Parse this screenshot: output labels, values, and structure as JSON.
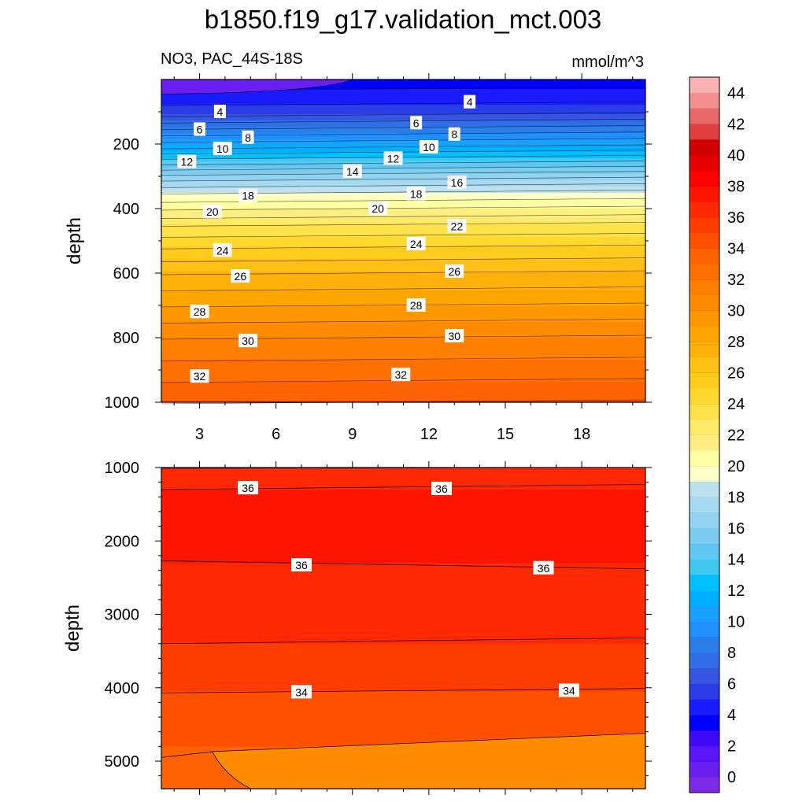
{
  "title": "b1850.f19_g17.validation_mct.003",
  "left_string": "NO3, PAC_44S-18S",
  "right_string": "mmol/m^3",
  "chart_data": [
    {
      "type": "contour",
      "panel": "upper",
      "ylabel": "depth",
      "xlabel": "",
      "xlim": [
        1.5,
        20.5
      ],
      "ylim": [
        1000,
        0
      ],
      "x_ticks": [
        3,
        6,
        9,
        12,
        15,
        18
      ],
      "y_ticks": [
        200,
        400,
        600,
        800,
        1000
      ],
      "contour_interval": 1,
      "depth_profile": [
        {
          "depth": 10,
          "value": 2.5
        },
        {
          "depth": 50,
          "value": 3.5
        },
        {
          "depth": 100,
          "value": 4.5
        },
        {
          "depth": 150,
          "value": 7
        },
        {
          "depth": 200,
          "value": 9.5
        },
        {
          "depth": 250,
          "value": 12.5
        },
        {
          "depth": 300,
          "value": 15.5
        },
        {
          "depth": 350,
          "value": 18
        },
        {
          "depth": 400,
          "value": 20
        },
        {
          "depth": 450,
          "value": 22
        },
        {
          "depth": 500,
          "value": 23.5
        },
        {
          "depth": 600,
          "value": 26
        },
        {
          "depth": 700,
          "value": 28
        },
        {
          "depth": 800,
          "value": 30
        },
        {
          "depth": 900,
          "value": 31.5
        },
        {
          "depth": 1000,
          "value": 33
        }
      ],
      "contour_labels": [
        {
          "x": 3.8,
          "depth": 100,
          "text": "4"
        },
        {
          "x": 13.6,
          "depth": 70,
          "text": "4"
        },
        {
          "x": 3.0,
          "depth": 155,
          "text": "6"
        },
        {
          "x": 11.5,
          "depth": 135,
          "text": "6"
        },
        {
          "x": 4.9,
          "depth": 180,
          "text": "8"
        },
        {
          "x": 13.0,
          "depth": 170,
          "text": "8"
        },
        {
          "x": 3.9,
          "depth": 215,
          "text": "10"
        },
        {
          "x": 12.0,
          "depth": 210,
          "text": "10"
        },
        {
          "x": 2.5,
          "depth": 255,
          "text": "12"
        },
        {
          "x": 10.6,
          "depth": 245,
          "text": "12"
        },
        {
          "x": 9.0,
          "depth": 285,
          "text": "14"
        },
        {
          "x": 13.1,
          "depth": 320,
          "text": "16"
        },
        {
          "x": 4.9,
          "depth": 360,
          "text": "18"
        },
        {
          "x": 11.5,
          "depth": 355,
          "text": "18"
        },
        {
          "x": 3.5,
          "depth": 410,
          "text": "20"
        },
        {
          "x": 10.0,
          "depth": 400,
          "text": "20"
        },
        {
          "x": 13.1,
          "depth": 455,
          "text": "22"
        },
        {
          "x": 3.9,
          "depth": 530,
          "text": "24"
        },
        {
          "x": 11.5,
          "depth": 510,
          "text": "24"
        },
        {
          "x": 4.6,
          "depth": 610,
          "text": "26"
        },
        {
          "x": 13.0,
          "depth": 595,
          "text": "26"
        },
        {
          "x": 3.0,
          "depth": 720,
          "text": "28"
        },
        {
          "x": 11.5,
          "depth": 700,
          "text": "28"
        },
        {
          "x": 4.9,
          "depth": 810,
          "text": "30"
        },
        {
          "x": 13.0,
          "depth": 795,
          "text": "30"
        },
        {
          "x": 3.0,
          "depth": 920,
          "text": "32"
        },
        {
          "x": 10.9,
          "depth": 915,
          "text": "32"
        }
      ]
    },
    {
      "type": "contour",
      "panel": "lower",
      "ylabel": "depth",
      "xlabel": "",
      "xlim": [
        1.5,
        20.5
      ],
      "ylim": [
        5375,
        1000
      ],
      "y_ticks": [
        1000,
        2000,
        3000,
        4000,
        5000
      ],
      "regions": [
        {
          "value_range": [
            35,
            36
          ],
          "depth_top": 1000,
          "depth_bottom": 1300
        },
        {
          "value_range": [
            36,
            37
          ],
          "depth_top": 1300,
          "depth_bottom": 2300
        },
        {
          "value_range": [
            35,
            36
          ],
          "depth_top": 2300,
          "depth_bottom": 3400
        },
        {
          "value_range": [
            34,
            35
          ],
          "depth_top": 3400,
          "depth_bottom": 4050
        },
        {
          "value_range": [
            33,
            34
          ],
          "depth_top": 4050,
          "depth_bottom": 4800
        },
        {
          "value_range": [
            32,
            33
          ],
          "depth_top": 4800,
          "depth_bottom": 5375
        }
      ],
      "contour_labels": [
        {
          "x": 4.9,
          "depth": 1280,
          "text": "36"
        },
        {
          "x": 12.5,
          "depth": 1290,
          "text": "36"
        },
        {
          "x": 7.0,
          "depth": 2330,
          "text": "36"
        },
        {
          "x": 16.5,
          "depth": 2370,
          "text": "36"
        },
        {
          "x": 7.0,
          "depth": 4060,
          "text": "34"
        },
        {
          "x": 17.5,
          "depth": 4040,
          "text": "34"
        }
      ]
    }
  ],
  "colorbar": {
    "labels": [
      "0",
      "2",
      "4",
      "6",
      "8",
      "10",
      "12",
      "14",
      "16",
      "18",
      "20",
      "22",
      "24",
      "26",
      "28",
      "30",
      "32",
      "34",
      "36",
      "38",
      "40",
      "42",
      "44"
    ],
    "colors": [
      "#7e2be6",
      "#6a1ef0",
      "#5a14f5",
      "#3d0afa",
      "#0000ff",
      "#1a1aff",
      "#2a3be8",
      "#3655e0",
      "#2f6ee8",
      "#2b7de8",
      "#1e90ff",
      "#1aa0ff",
      "#00b0ff",
      "#00c0ff",
      "#40c8f2",
      "#5ec8f2",
      "#7ccdf0",
      "#93d3ef",
      "#a6daef",
      "#bde2ef",
      "#ffffc8",
      "#ffffa6",
      "#ffef80",
      "#ffea6a",
      "#ffe14a",
      "#ffd82e",
      "#ffcc1e",
      "#ffc016",
      "#ffb00a",
      "#ffa500",
      "#ff9800",
      "#ff8c00",
      "#ff8000",
      "#ff7000",
      "#ff6200",
      "#ff5000",
      "#ff3c00",
      "#ff2800",
      "#ff1400",
      "#ff0000",
      "#e60000",
      "#d00000",
      "#e04040",
      "#e86868",
      "#f29090",
      "#f8b2b2"
    ]
  }
}
